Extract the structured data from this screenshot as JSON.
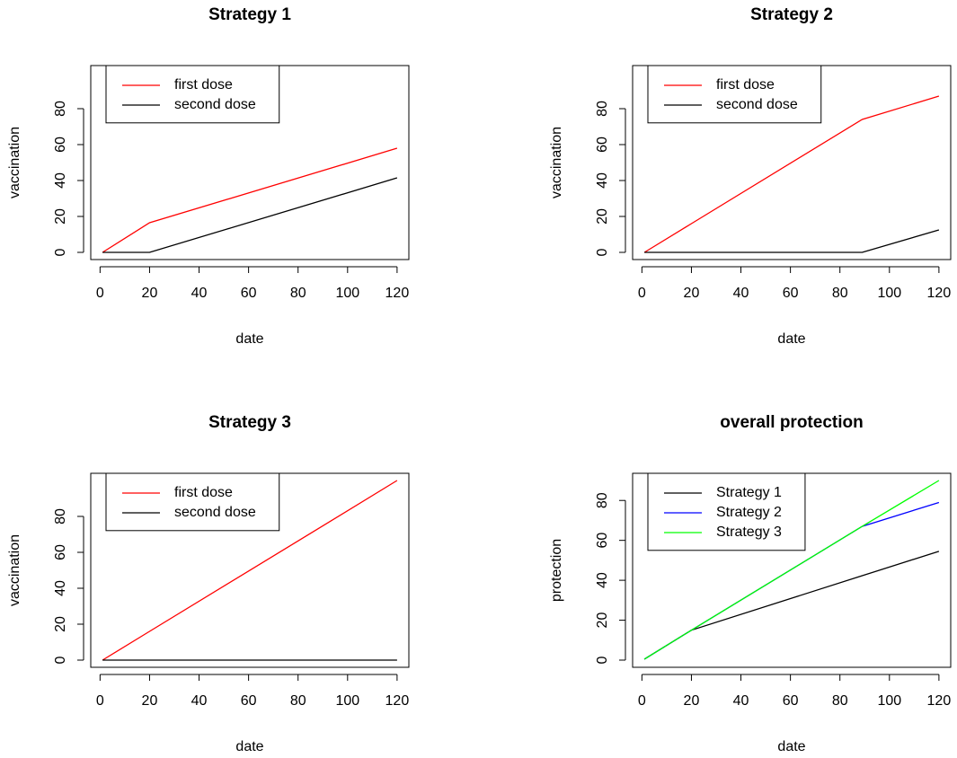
{
  "chart_data": [
    {
      "type": "line",
      "title": "Strategy 1",
      "xlabel": "date",
      "ylabel": "vaccination",
      "x": [
        1,
        20,
        89,
        120
      ],
      "series": [
        {
          "name": "first dose",
          "color": "#ff0000",
          "values": [
            0,
            16.5,
            45.1,
            58
          ]
        },
        {
          "name": "second dose",
          "color": "#000000",
          "values": [
            0,
            0,
            28.6,
            41.5
          ]
        }
      ],
      "xlim": [
        -3.76,
        124.76
      ],
      "ylim": [
        -4,
        104
      ],
      "xticks": [
        0,
        20,
        40,
        60,
        80,
        100,
        120
      ],
      "yticks": [
        0,
        20,
        40,
        60,
        80
      ],
      "legend": "topleft"
    },
    {
      "type": "line",
      "title": "Strategy 2",
      "xlabel": "date",
      "ylabel": "vaccination",
      "x": [
        1,
        20,
        89,
        120
      ],
      "series": [
        {
          "name": "first dose",
          "color": "#ff0000",
          "values": [
            0,
            16,
            74,
            87
          ]
        },
        {
          "name": "second dose",
          "color": "#000000",
          "values": [
            0,
            0,
            0,
            12.5
          ]
        }
      ],
      "xlim": [
        -3.76,
        124.76
      ],
      "ylim": [
        -4,
        104
      ],
      "xticks": [
        0,
        20,
        40,
        60,
        80,
        100,
        120
      ],
      "yticks": [
        0,
        20,
        40,
        60,
        80
      ],
      "legend": "topleft"
    },
    {
      "type": "line",
      "title": "Strategy 3",
      "xlabel": "date",
      "ylabel": "vaccination",
      "x": [
        1,
        20,
        89,
        120
      ],
      "series": [
        {
          "name": "first dose",
          "color": "#ff0000",
          "values": [
            0,
            16,
            73.9,
            100
          ]
        },
        {
          "name": "second dose",
          "color": "#000000",
          "values": [
            0,
            0,
            0,
            0
          ]
        }
      ],
      "xlim": [
        -3.76,
        124.76
      ],
      "ylim": [
        -4,
        104
      ],
      "xticks": [
        0,
        20,
        40,
        60,
        80,
        100,
        120
      ],
      "yticks": [
        0,
        20,
        40,
        60,
        80
      ],
      "legend": "topleft"
    },
    {
      "type": "line",
      "title": "overall protection",
      "xlabel": "date",
      "ylabel": "protection",
      "x": [
        1,
        20,
        89,
        120
      ],
      "series": [
        {
          "name": "Strategy 1",
          "color": "#000000",
          "values": [
            0.5,
            15,
            42.3,
            54.5
          ]
        },
        {
          "name": "Strategy 2",
          "color": "#0000ff",
          "values": [
            0.5,
            15,
            67,
            79
          ]
        },
        {
          "name": "Strategy 3",
          "color": "#00ff00",
          "values": [
            0.5,
            15,
            67,
            90
          ]
        }
      ],
      "xlim": [
        -3.76,
        124.76
      ],
      "ylim": [
        -3.6,
        93.6
      ],
      "xticks": [
        0,
        20,
        40,
        60,
        80,
        100,
        120
      ],
      "yticks": [
        0,
        20,
        40,
        60,
        80
      ],
      "legend": "topleft"
    }
  ]
}
